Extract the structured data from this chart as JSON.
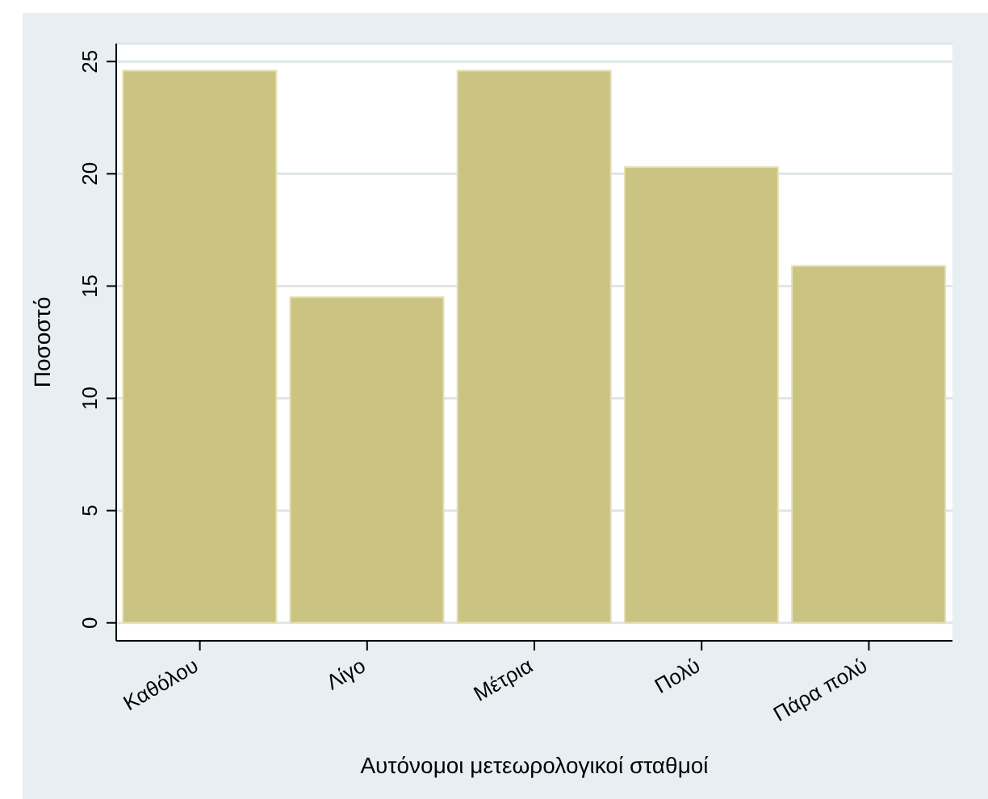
{
  "chart_data": {
    "type": "bar",
    "xlabel": "Αυτόνομοι μετεωρολογικοί σταθμοί",
    "ylabel": "Ποσοστό",
    "categories": [
      "Καθόλου",
      "Λίγο",
      "Μέτρια",
      "Πολύ",
      "Πάρα πολύ"
    ],
    "values": [
      24.6,
      14.5,
      24.6,
      20.3,
      15.9
    ],
    "color": "#cbc382",
    "ylim": [
      -0.8,
      25.8
    ],
    "yticks": [
      0,
      5,
      10,
      15,
      20,
      25
    ],
    "grid": "y"
  }
}
